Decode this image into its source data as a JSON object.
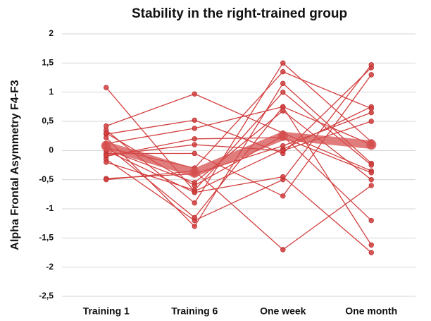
{
  "chart_data": {
    "type": "line",
    "title": "Stability in the right-trained group",
    "y_label": "Alpha Frontal Asymmetry F4-F3",
    "categories": [
      "Training 1",
      "Training 6",
      "One week",
      "One month"
    ],
    "ylim": [
      -2.5,
      2
    ],
    "yticks": [
      {
        "value": -2.5,
        "label": "-2,5"
      },
      -2,
      {
        "value": -1.5,
        "label": "-1,5"
      },
      -1,
      {
        "value": -0.5,
        "label": "-0,5"
      },
      0,
      {
        "value": 0.5,
        "label": "0,5"
      },
      1,
      {
        "value": 1.5,
        "label": "1,5"
      },
      2
    ],
    "grid": true,
    "series": [
      {
        "color": "#d23f3f",
        "values": [
          1.08,
          -0.7,
          0.02,
          0.75
        ]
      },
      {
        "color": "#d23f3f",
        "values": [
          0.42,
          0.97,
          0.3,
          -0.35
        ]
      },
      {
        "color": "#d23f3f",
        "values": [
          0.35,
          -0.9,
          1.5,
          0.15
        ]
      },
      {
        "color": "#d23f3f",
        "values": [
          0.28,
          0.52,
          -0.05,
          1.42
        ]
      },
      {
        "color": "#d23f3f",
        "values": [
          0.22,
          -1.3,
          1.15,
          -0.22
        ]
      },
      {
        "color": "#d23f3f",
        "values": [
          0.12,
          0.38,
          0.75,
          -1.62
        ]
      },
      {
        "color": "#d23f3f",
        "values": [
          0.05,
          -0.3,
          1.35,
          0.72
        ]
      },
      {
        "color": "#d23f3f",
        "values": [
          0.02,
          -0.55,
          0.68,
          -0.5
        ]
      },
      {
        "color": "#d23f3f",
        "values": [
          -0.05,
          -0.05,
          -0.78,
          1.3
        ]
      },
      {
        "color": "#d23f3f",
        "values": [
          -0.1,
          0.2,
          0.22,
          -0.38
        ]
      },
      {
        "color": "#d23f3f",
        "values": [
          -0.15,
          -1.2,
          -0.5,
          1.47
        ]
      },
      {
        "color": "#d23f3f",
        "values": [
          -0.2,
          -0.68,
          1.0,
          -0.25
        ]
      },
      {
        "color": "#d23f3f",
        "values": [
          -0.48,
          -0.4,
          0.08,
          0.65
        ]
      },
      {
        "color": "#d23f3f",
        "values": [
          -0.5,
          -0.35,
          -1.7,
          -0.6
        ]
      },
      {
        "color": "#d23f3f",
        "values": [
          0.0,
          -0.72,
          -0.45,
          -1.75
        ]
      },
      {
        "color": "#d23f3f",
        "values": [
          0.08,
          -1.15,
          0.75,
          0.1
        ]
      },
      {
        "color": "#d23f3f",
        "values": [
          -0.08,
          0.1,
          0.0,
          0.5
        ]
      },
      {
        "color": "#d23f3f",
        "values": [
          0.3,
          -0.6,
          0.25,
          -1.2
        ]
      },
      {
        "color": "rgba(214,80,80,0.75)",
        "line_width": 12,
        "values": [
          0.08,
          -0.38,
          0.25,
          0.1
        ]
      }
    ]
  }
}
